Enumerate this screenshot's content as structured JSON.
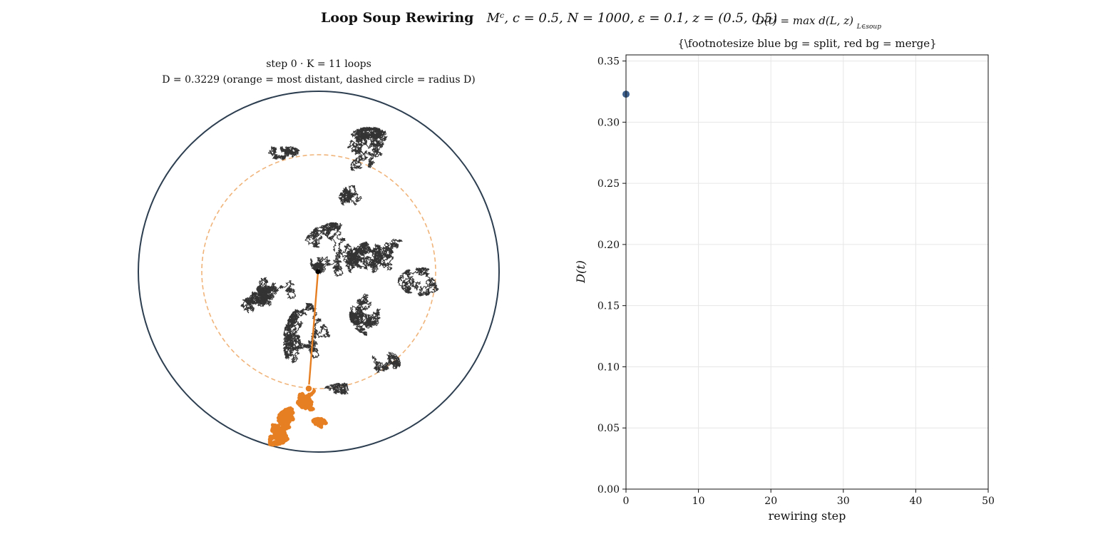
{
  "figure": {
    "title_bold": "Loop Soup Rewiring",
    "title_math": "Mᶜ,   c = 0.5,   N = 1000,   ε = 0.1,   z = (0.5, 0.5)"
  },
  "left_panel": {
    "subtitle_line1": "step 0   ·   K = 11 loops",
    "subtitle_line2": "D = 0.3229   (orange = most distant,  dashed circle = radius D)",
    "colors": {
      "loops": "#333333",
      "most_distant": "#e67e22",
      "disk": "#2c3e50",
      "dashed": "#f0b47a"
    }
  },
  "right_panel": {
    "formula": "D(t) = max d(L, z)",
    "formula_sub": "L∈soup",
    "title": "{\\footnotesize blue bg = split,  red bg = merge}"
  },
  "chart_data": {
    "type": "scatter",
    "xlabel": "rewiring step",
    "ylabel": "D(t)",
    "xlim": [
      0,
      50
    ],
    "ylim": [
      0,
      0.355
    ],
    "xticks": [
      0,
      10,
      20,
      30,
      40,
      50
    ],
    "yticks": [
      0.0,
      0.05,
      0.1,
      0.15,
      0.2,
      0.25,
      0.3,
      0.35
    ],
    "grid": true,
    "series": [
      {
        "x": [
          0
        ],
        "y": [
          0.3229
        ],
        "color": "#3b5f8a"
      }
    ]
  }
}
